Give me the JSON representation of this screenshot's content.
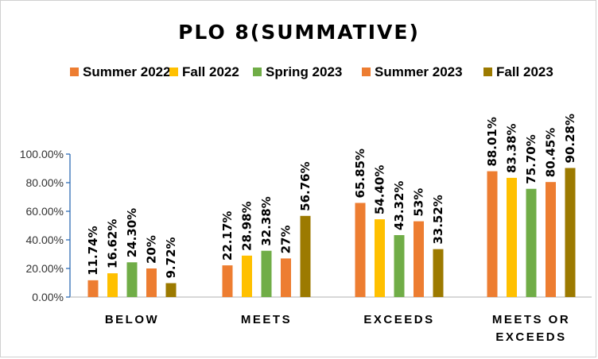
{
  "chart_data": {
    "type": "bar",
    "title": "PLO 8(SUMMATIVE)",
    "categories": [
      [
        "BELOW"
      ],
      [
        "MEETS"
      ],
      [
        "EXCEEDS"
      ],
      [
        "MEETS OR",
        "EXCEEDS"
      ]
    ],
    "ylim": [
      0,
      100
    ],
    "yticks": [
      "0.00%",
      "20.00%",
      "40.00%",
      "60.00%",
      "80.00%",
      "100.00%"
    ],
    "grid": false,
    "legend_position": "top",
    "series": [
      {
        "name": "Summer 2022",
        "color": "#ED7D31",
        "values": [
          11.74,
          22.17,
          65.85,
          88.01
        ],
        "labels": [
          "11.74%",
          "22.17%",
          "65.85%",
          "88.01%"
        ]
      },
      {
        "name": "Fall 2022",
        "color": "#FFC000",
        "values": [
          16.62,
          28.98,
          54.4,
          83.38
        ],
        "labels": [
          "16.62%",
          "28.98%",
          "54.40%",
          "83.38%"
        ]
      },
      {
        "name": "Spring 2023",
        "color": "#70AD47",
        "values": [
          24.3,
          32.38,
          43.32,
          75.7
        ],
        "labels": [
          "24.30%",
          "32.38%",
          "43.32%",
          "75.70%"
        ]
      },
      {
        "name": "Summer 2023",
        "color": "#ED7D31",
        "values": [
          20,
          27,
          53,
          80.45
        ],
        "labels": [
          "20%",
          "27%",
          "53%",
          "80.45%"
        ]
      },
      {
        "name": "Fall 2023",
        "color": "#9C7A00",
        "values": [
          9.72,
          56.76,
          33.52,
          90.28
        ],
        "labels": [
          "9.72%",
          "56.76%",
          "33.52%",
          "90.28%"
        ]
      }
    ]
  }
}
